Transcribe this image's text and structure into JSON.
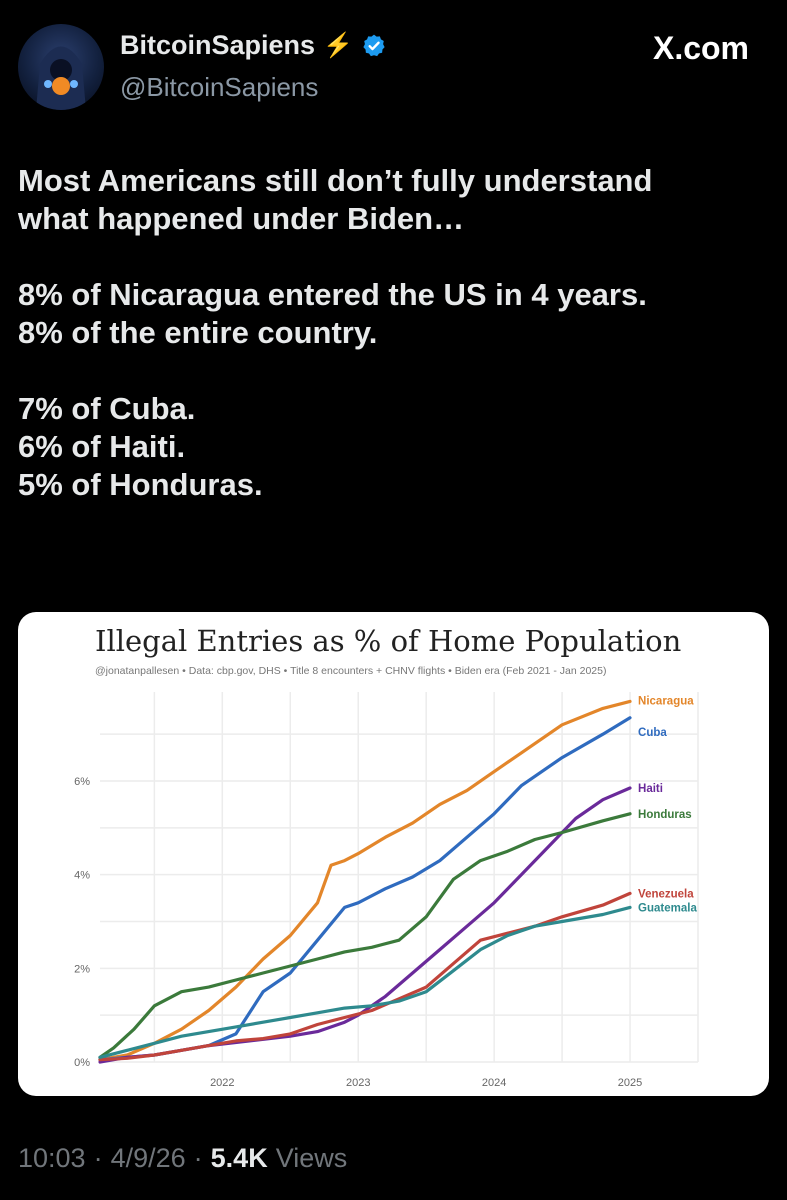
{
  "user": {
    "display_name": "BitcoinSapiens",
    "badge_emoji": "⚡",
    "handle": "@BitcoinSapiens",
    "verified_icon": "verified-badge-icon"
  },
  "brand": {
    "label": "X.com"
  },
  "tweet": {
    "lines": [
      "Most Americans still don’t fully understand",
      "what happened under Biden…",
      "",
      "8% of Nicaragua entered the US in 4 years.",
      "8% of the entire country.",
      "",
      "7% of Cuba.",
      "6% of Haiti.",
      "5% of Honduras."
    ]
  },
  "chart_data": {
    "type": "line",
    "title": "Illegal Entries as % of Home Population",
    "subtitle": "@jonatanpallesen  •  Data: cbp.gov, DHS  •  Title 8 encounters + CHNV flights  •  Biden era (Feb 2021 - Jan 2025)",
    "xlabel": "",
    "ylabel": "",
    "x_ticks": [
      "2022",
      "2023",
      "2024",
      "2025"
    ],
    "y_ticks": [
      "0%",
      "2%",
      "4%",
      "6%"
    ],
    "xlim": [
      2021.1,
      2025.5
    ],
    "ylim": [
      0,
      7.9
    ],
    "grid": true,
    "legend": "direct labels at line ends",
    "series": [
      {
        "name": "Nicaragua",
        "color": "#e3862a",
        "x": [
          2021.1,
          2021.3,
          2021.5,
          2021.7,
          2021.9,
          2022.1,
          2022.3,
          2022.5,
          2022.7,
          2022.8,
          2022.9,
          2023.0,
          2023.2,
          2023.4,
          2023.6,
          2023.8,
          2023.95,
          2024.2,
          2024.5,
          2024.8,
          2025.0
        ],
        "y": [
          0.05,
          0.15,
          0.4,
          0.7,
          1.1,
          1.6,
          2.2,
          2.7,
          3.4,
          4.2,
          4.3,
          4.45,
          4.8,
          5.1,
          5.5,
          5.8,
          6.1,
          6.6,
          7.2,
          7.55,
          7.7
        ]
      },
      {
        "name": "Cuba",
        "color": "#2f6bbf",
        "x": [
          2021.1,
          2021.3,
          2021.5,
          2021.7,
          2021.9,
          2022.1,
          2022.3,
          2022.5,
          2022.7,
          2022.9,
          2023.0,
          2023.2,
          2023.4,
          2023.6,
          2023.8,
          2024.0,
          2024.2,
          2024.5,
          2024.8,
          2025.0
        ],
        "y": [
          0.05,
          0.1,
          0.15,
          0.25,
          0.35,
          0.6,
          1.5,
          1.9,
          2.6,
          3.3,
          3.4,
          3.7,
          3.95,
          4.3,
          4.8,
          5.3,
          5.9,
          6.5,
          7.0,
          7.35
        ]
      },
      {
        "name": "Haiti",
        "color": "#6a2a9a",
        "x": [
          2021.1,
          2021.3,
          2021.5,
          2021.7,
          2021.9,
          2022.2,
          2022.5,
          2022.7,
          2022.9,
          2023.0,
          2023.2,
          2023.4,
          2023.6,
          2023.8,
          2024.0,
          2024.2,
          2024.4,
          2024.6,
          2024.8,
          2025.0
        ],
        "y": [
          0.0,
          0.1,
          0.15,
          0.25,
          0.35,
          0.45,
          0.55,
          0.65,
          0.85,
          1.0,
          1.4,
          1.9,
          2.4,
          2.9,
          3.4,
          4.0,
          4.6,
          5.2,
          5.6,
          5.85
        ]
      },
      {
        "name": "Honduras",
        "color": "#3b7a3b",
        "x": [
          2021.1,
          2021.2,
          2021.35,
          2021.5,
          2021.7,
          2021.9,
          2022.1,
          2022.3,
          2022.5,
          2022.7,
          2022.9,
          2023.1,
          2023.3,
          2023.5,
          2023.7,
          2023.9,
          2024.1,
          2024.3,
          2024.5,
          2024.8,
          2025.0
        ],
        "y": [
          0.1,
          0.3,
          0.7,
          1.2,
          1.5,
          1.6,
          1.75,
          1.9,
          2.05,
          2.2,
          2.35,
          2.45,
          2.6,
          3.1,
          3.9,
          4.3,
          4.5,
          4.75,
          4.9,
          5.15,
          5.3
        ]
      },
      {
        "name": "Venezuela",
        "color": "#c0443b",
        "x": [
          2021.1,
          2021.3,
          2021.5,
          2021.7,
          2021.9,
          2022.1,
          2022.3,
          2022.5,
          2022.7,
          2022.9,
          2023.1,
          2023.3,
          2023.5,
          2023.7,
          2023.9,
          2024.1,
          2024.3,
          2024.5,
          2024.8,
          2025.0
        ],
        "y": [
          0.05,
          0.08,
          0.15,
          0.25,
          0.35,
          0.45,
          0.5,
          0.6,
          0.8,
          0.95,
          1.1,
          1.35,
          1.6,
          2.1,
          2.6,
          2.75,
          2.9,
          3.1,
          3.35,
          3.6
        ]
      },
      {
        "name": "Guatemala",
        "color": "#2e8a8e",
        "x": [
          2021.1,
          2021.3,
          2021.5,
          2021.7,
          2021.9,
          2022.1,
          2022.3,
          2022.5,
          2022.7,
          2022.9,
          2023.1,
          2023.3,
          2023.5,
          2023.7,
          2023.9,
          2024.1,
          2024.3,
          2024.5,
          2024.8,
          2025.0
        ],
        "y": [
          0.1,
          0.25,
          0.4,
          0.55,
          0.65,
          0.75,
          0.85,
          0.95,
          1.05,
          1.15,
          1.2,
          1.3,
          1.5,
          1.95,
          2.4,
          2.7,
          2.9,
          3.0,
          3.15,
          3.3
        ]
      }
    ]
  },
  "footer": {
    "time": "10:03",
    "dot1": "·",
    "date": "4/9/26",
    "dot2": "·",
    "views_count": "5.4K",
    "views_label": "Views"
  }
}
